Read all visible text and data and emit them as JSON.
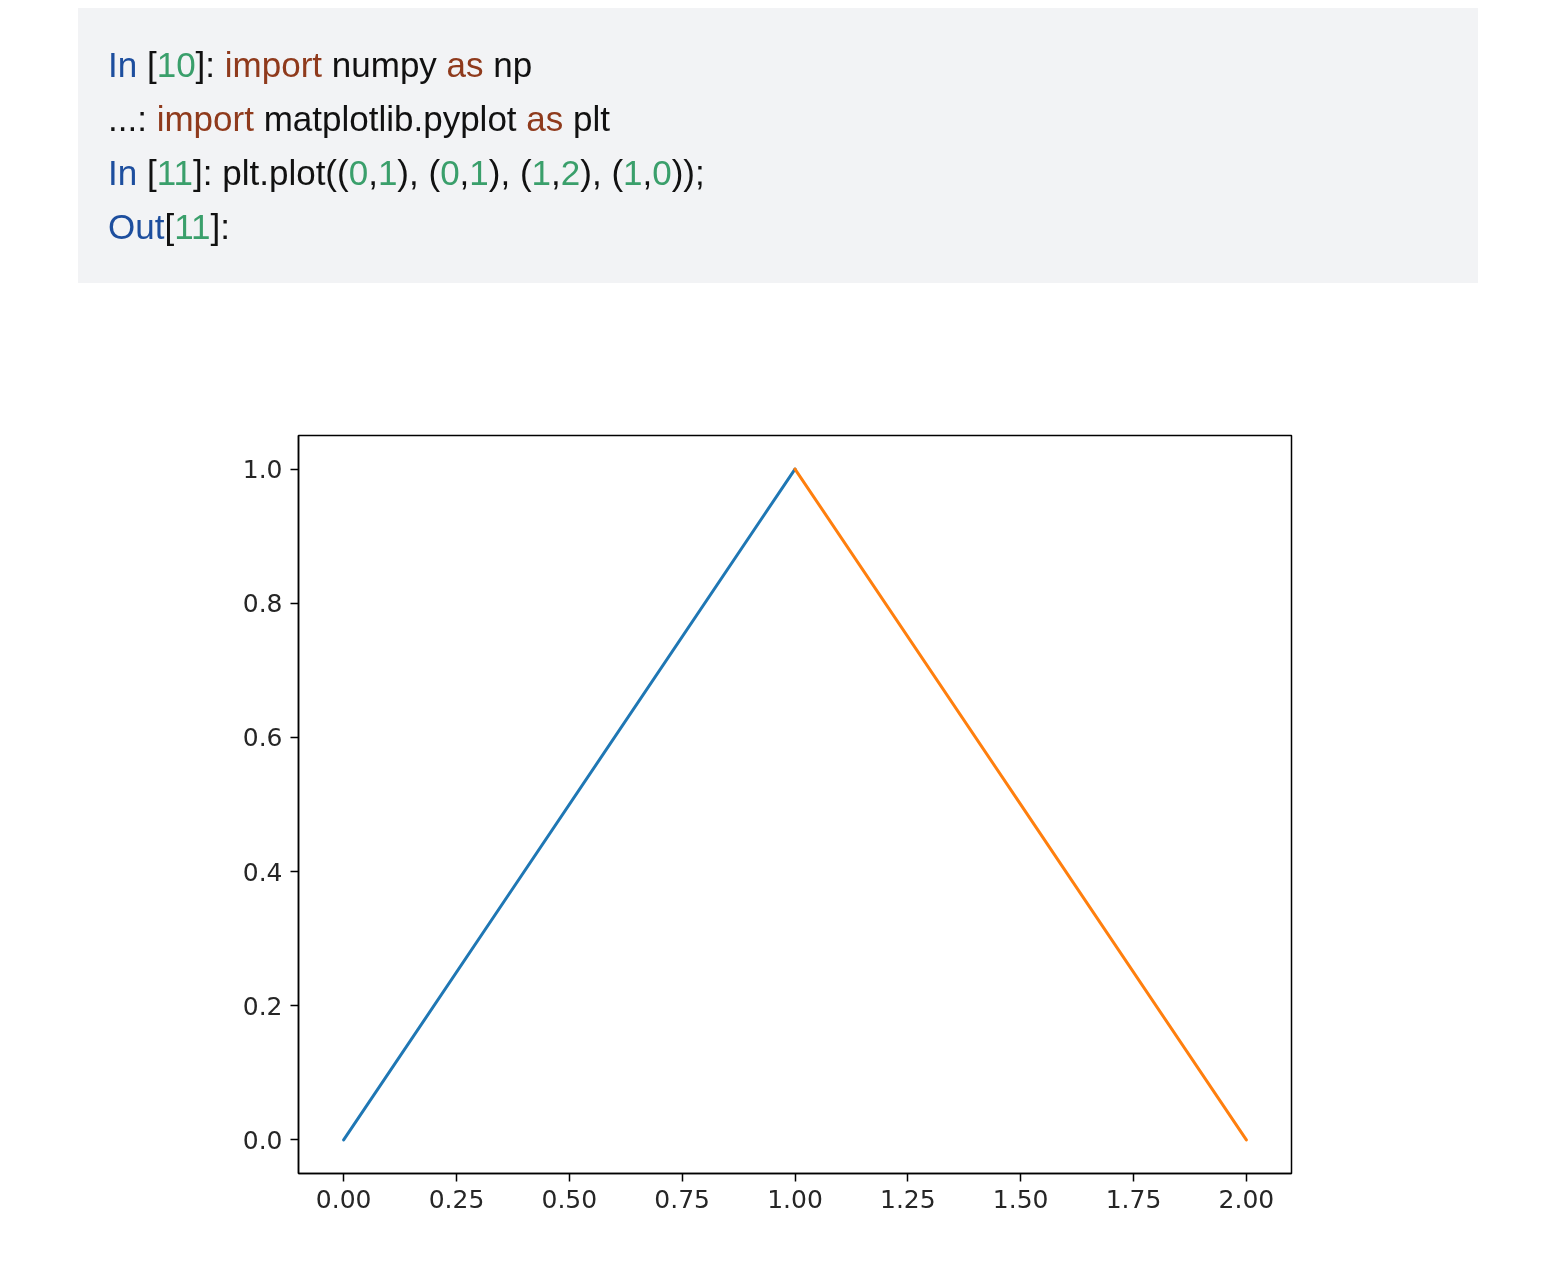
{
  "chart_data": {
    "type": "line",
    "annotations": [
      "In [10]: import numpy as np",
      "...: import matplotlib.pyplot as plt",
      "In [11]: plt.plot((0,1), (0,1), (1,2), (1,0));",
      "Out[11]:"
    ],
    "series": [
      {
        "color": "#1f77b4",
        "x": [
          0,
          1
        ],
        "values": [
          0,
          1
        ]
      },
      {
        "color": "#ff7f0e",
        "x": [
          1,
          2
        ],
        "values": [
          1,
          0
        ]
      }
    ],
    "xlim": [
      -0.1,
      2.1
    ],
    "ylim": [
      -0.05,
      1.05
    ],
    "xticks": [
      {
        "value": 0,
        "label": "0.00"
      },
      {
        "value": 0.25,
        "label": "0.25"
      },
      {
        "value": 0.5,
        "label": "0.50"
      },
      {
        "value": 0.75,
        "label": "0.75"
      },
      {
        "value": 1,
        "label": "1.00"
      },
      {
        "value": 1.25,
        "label": "1.25"
      },
      {
        "value": 1.5,
        "label": "1.50"
      },
      {
        "value": 1.75,
        "label": "1.75"
      },
      {
        "value": 2,
        "label": "2.00"
      }
    ],
    "yticks": [
      {
        "value": 0,
        "label": "0.0"
      },
      {
        "value": 0.2,
        "label": "0.2"
      },
      {
        "value": 0.4,
        "label": "0.4"
      },
      {
        "value": 0.6,
        "label": "0.6"
      },
      {
        "value": 0.8,
        "label": "0.8"
      },
      {
        "value": 1,
        "label": "1.0"
      }
    ]
  }
}
